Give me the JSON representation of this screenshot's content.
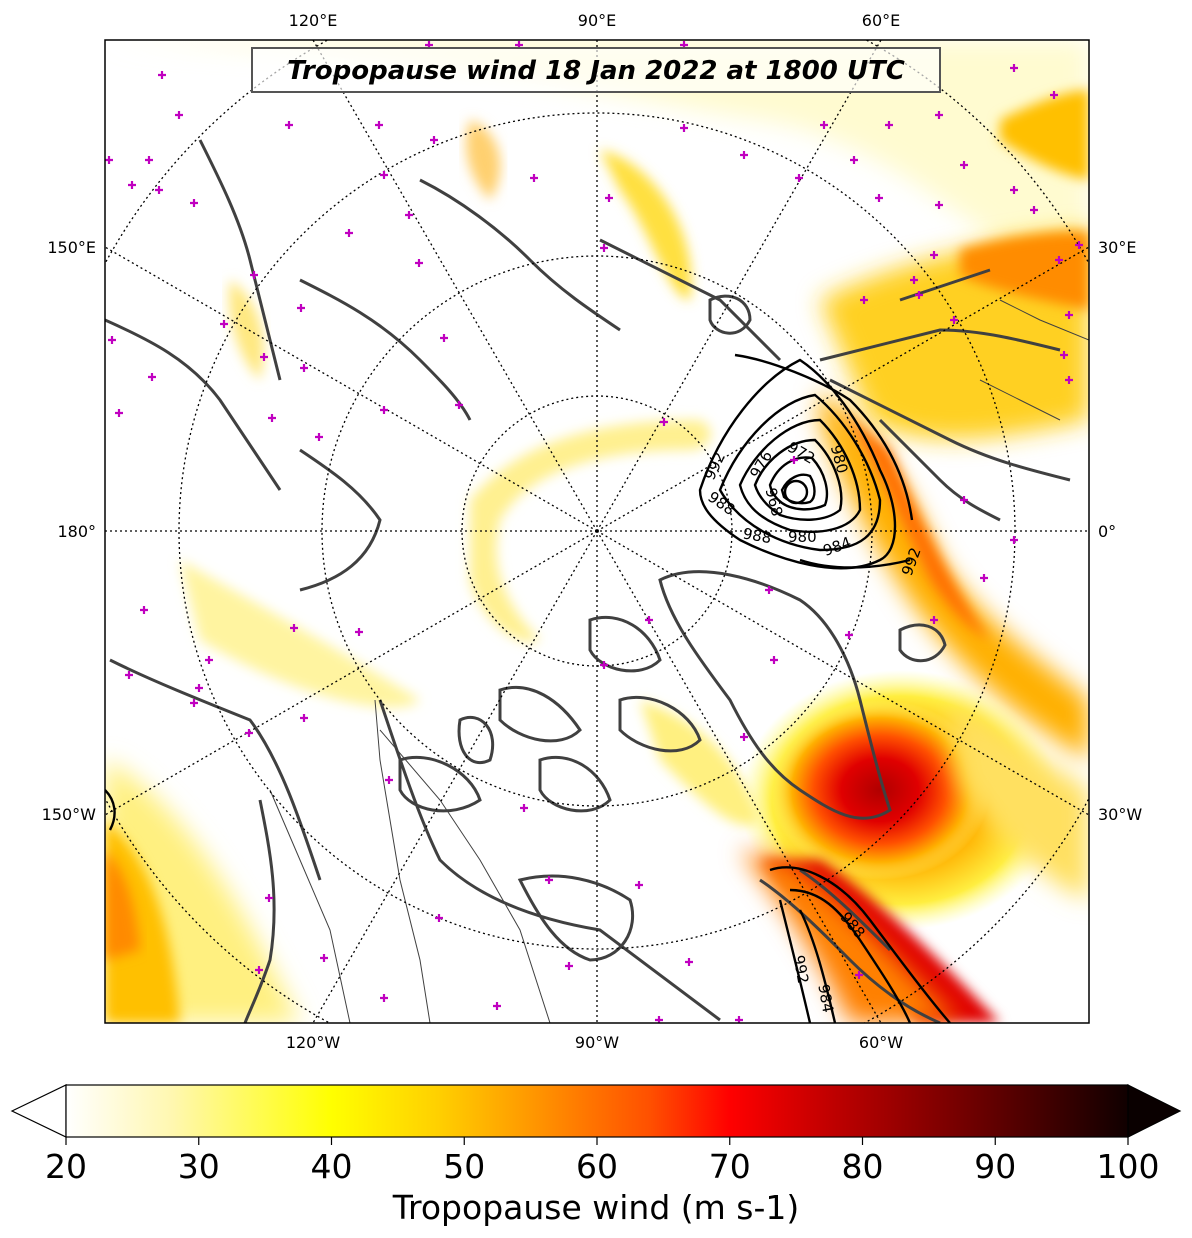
{
  "title": "Tropopause wind 18 Jan 2022 at 1800 UTC",
  "colorbar": {
    "label": "Tropopause wind (m s-1)",
    "min": 20,
    "max": 100,
    "ticks": [
      "20",
      "30",
      "40",
      "50",
      "60",
      "70",
      "80",
      "90",
      "100"
    ],
    "colors": [
      "#ffffff",
      "#fff8c0",
      "#ffff66",
      "#ffff00",
      "#ffcc00",
      "#ff8000",
      "#ff4000",
      "#ff0000",
      "#c00000",
      "#800000",
      "#400000",
      "#000000"
    ]
  },
  "longitude_labels": {
    "top": [
      "120°E",
      "90°E",
      "60°E"
    ],
    "bottom": [
      "120°W",
      "90°W",
      "60°W"
    ],
    "left": [
      "150°E",
      "180°",
      "150°W"
    ],
    "right": [
      "30°E",
      "0°",
      "30°W"
    ]
  },
  "contours": {
    "unit_values": [
      "992",
      "976",
      "972",
      "980",
      "968",
      "988",
      "988",
      "980",
      "984",
      "992",
      "988",
      "992",
      "984"
    ]
  }
}
